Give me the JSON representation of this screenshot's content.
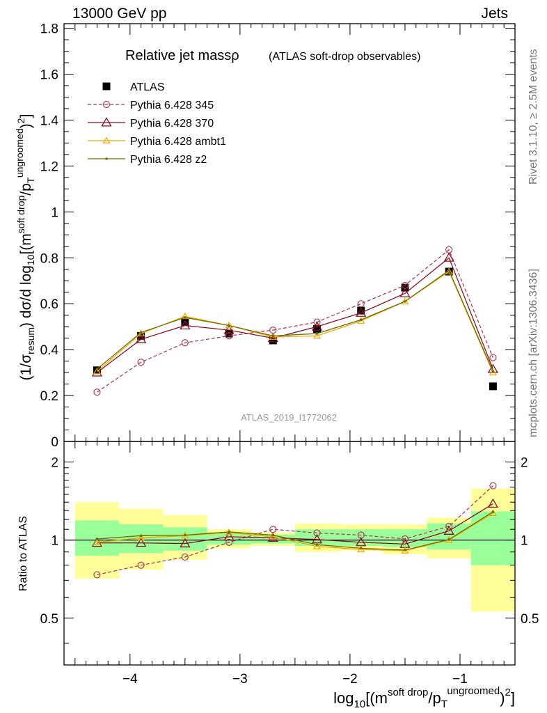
{
  "header": {
    "left": "13000 GeV pp",
    "right": "Jets"
  },
  "side_labels": {
    "rivet": "Rivet 3.1.10, ≥ 2.5M events",
    "mcplots": "mcplots.cern.ch [arXiv:1306.3436]"
  },
  "watermark": "ATLAS_2019_I1772062",
  "colors": {
    "atlas": "#000000",
    "p345": "#b03c55",
    "p370": "#8b0f22",
    "ambt1": "#f0a800",
    "z2": "#6e6e00",
    "band_green": "#99ff99",
    "band_yellow": "#ffff99"
  },
  "chart_data": [
    {
      "type": "line",
      "title": "Relative jet massρ",
      "subtitle": "(ATLAS soft-drop observables)",
      "ylabel": "(1/σresum) dσ/d log10[(m^soft drop/pT^ungroomed)^2]",
      "xlim": [
        -4.6,
        -0.5
      ],
      "ylim": [
        0,
        1.82
      ],
      "yticks": [
        0,
        0.2,
        0.4,
        0.6,
        0.8,
        1,
        1.2,
        1.4,
        1.6,
        1.8
      ],
      "x": [
        -4.3,
        -3.9,
        -3.5,
        -3.1,
        -2.7,
        -2.3,
        -1.9,
        -1.5,
        -1.1,
        -0.7
      ],
      "series": [
        {
          "name": "ATLAS",
          "key": "atlas",
          "values": [
            0.31,
            0.46,
            0.52,
            0.47,
            0.44,
            0.49,
            0.57,
            0.67,
            0.74,
            0.24
          ]
        },
        {
          "name": "Pythia 6.428 345",
          "key": "p345",
          "values": [
            0.215,
            0.345,
            0.43,
            0.46,
            0.485,
            0.52,
            0.6,
            0.68,
            0.835,
            0.365
          ]
        },
        {
          "name": "Pythia 6.428 370",
          "key": "p370",
          "values": [
            0.3,
            0.445,
            0.505,
            0.485,
            0.45,
            0.5,
            0.56,
            0.645,
            0.8,
            0.315
          ]
        },
        {
          "name": "Pythia 6.428 ambt1",
          "key": "ambt1",
          "values": [
            0.305,
            0.47,
            0.545,
            0.505,
            0.455,
            0.46,
            0.525,
            0.61,
            0.74,
            0.3
          ]
        },
        {
          "name": "Pythia 6.428 z2",
          "key": "z2",
          "values": [
            0.315,
            0.475,
            0.54,
            0.505,
            0.46,
            0.47,
            0.53,
            0.61,
            0.745,
            0.305
          ]
        }
      ]
    },
    {
      "type": "line",
      "ylabel": "Ratio to ATLAS",
      "xlabel": "log10[(m^soft drop/pT^ungroomed)^2]",
      "xlim": [
        -4.6,
        -0.5
      ],
      "ylim": [
        0.33,
        2.4
      ],
      "log_y": true,
      "yticks": [
        0.5,
        1,
        2
      ],
      "xticks": [
        -4,
        -3,
        -2,
        -1
      ],
      "x": [
        -4.3,
        -3.9,
        -3.5,
        -3.1,
        -2.7,
        -2.3,
        -1.9,
        -1.5,
        -1.1,
        -0.7
      ],
      "bins": [
        [
          -4.5,
          -4.1
        ],
        [
          -4.1,
          -3.7
        ],
        [
          -3.7,
          -3.3
        ],
        [
          -3.3,
          -2.9
        ],
        [
          -2.9,
          -2.5
        ],
        [
          -2.5,
          -2.1
        ],
        [
          -2.1,
          -1.7
        ],
        [
          -1.7,
          -1.3
        ],
        [
          -1.3,
          -0.9
        ],
        [
          -0.9,
          -0.5
        ]
      ],
      "band_green": [
        [
          0.87,
          1.19
        ],
        [
          0.89,
          1.15
        ],
        [
          0.91,
          1.12
        ],
        [
          0.96,
          1.07
        ],
        [
          0.97,
          1.05
        ],
        [
          0.95,
          1.1
        ],
        [
          0.95,
          1.1
        ],
        [
          0.94,
          1.1
        ],
        [
          0.92,
          1.16
        ],
        [
          0.8,
          1.29
        ]
      ],
      "band_yellow": [
        [
          0.71,
          1.4
        ],
        [
          0.77,
          1.32
        ],
        [
          0.84,
          1.25
        ],
        [
          0.93,
          1.1
        ],
        [
          0.95,
          1.07
        ],
        [
          0.9,
          1.16
        ],
        [
          0.91,
          1.15
        ],
        [
          0.88,
          1.15
        ],
        [
          0.85,
          1.22
        ],
        [
          0.53,
          1.58
        ]
      ],
      "series": [
        {
          "name": "Pythia 6.428 345",
          "key": "p345",
          "values": [
            0.735,
            0.8,
            0.86,
            0.98,
            1.1,
            1.065,
            1.045,
            1.01,
            1.13,
            1.62
          ]
        },
        {
          "name": "Pythia 6.428 370",
          "key": "p370",
          "values": [
            0.975,
            0.975,
            0.97,
            1.03,
            1.02,
            1.005,
            0.98,
            0.965,
            1.085,
            1.38
          ]
        },
        {
          "name": "Pythia 6.428 ambt1",
          "key": "ambt1",
          "values": [
            0.98,
            1.02,
            1.04,
            1.07,
            1.03,
            0.945,
            0.92,
            0.91,
            1.0,
            1.27
          ]
        },
        {
          "name": "Pythia 6.428 z2",
          "key": "z2",
          "values": [
            1.01,
            1.04,
            1.045,
            1.075,
            1.045,
            0.96,
            0.93,
            0.915,
            1.005,
            1.285
          ]
        }
      ]
    }
  ]
}
